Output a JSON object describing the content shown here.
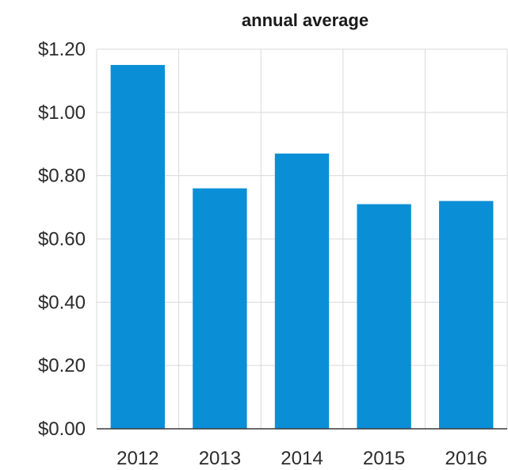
{
  "chart_data": {
    "type": "bar",
    "title": "annual average",
    "xlabel": "",
    "ylabel": "",
    "categories": [
      "2012",
      "2013",
      "2014",
      "2015",
      "2016"
    ],
    "values": [
      1.15,
      0.76,
      0.87,
      0.71,
      0.72
    ],
    "y_ticks": [
      "$0.00",
      "$0.20",
      "$0.40",
      "$0.60",
      "$0.80",
      "$1.00",
      "$1.20"
    ],
    "ylim": [
      0,
      1.2
    ],
    "grid": true,
    "legend": "none",
    "bar_color": "#0a8fd6",
    "grid_color": "#d9d9d9",
    "axis_color": "#3a3a3a"
  }
}
